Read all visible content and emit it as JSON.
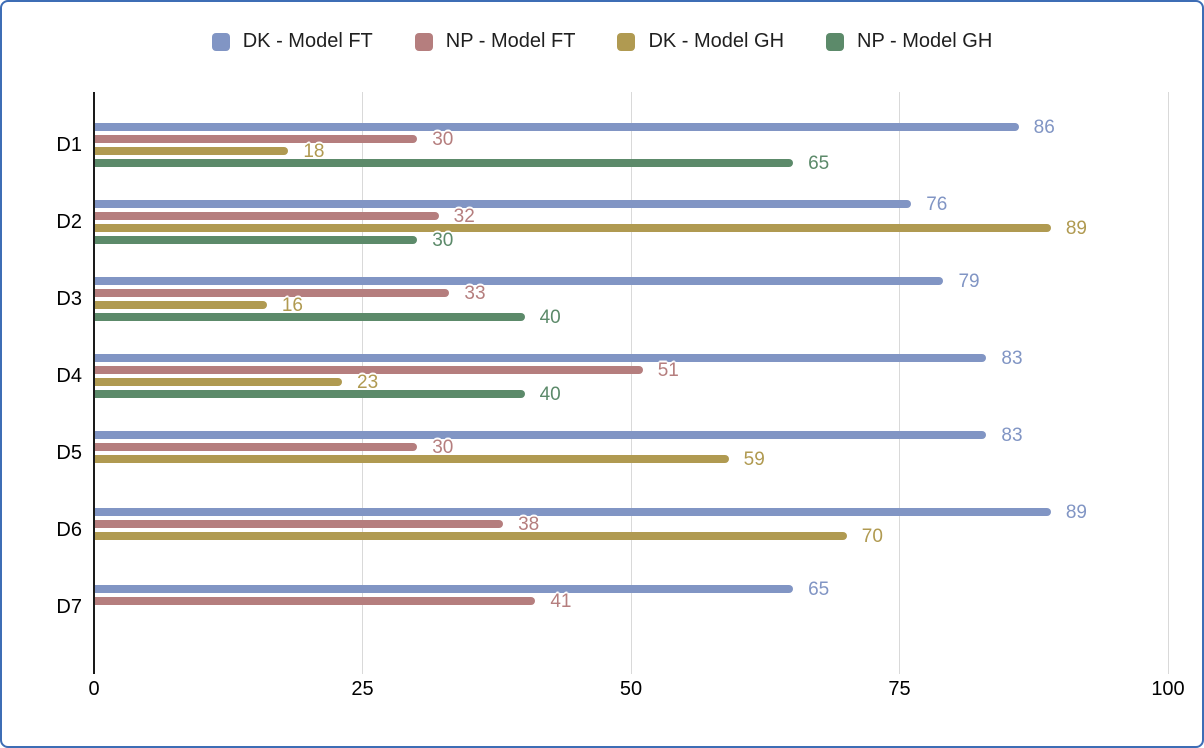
{
  "frame": {
    "background": "#ffffff",
    "border_color": "#3e6db5"
  },
  "chart_data": {
    "type": "bar",
    "orientation": "horizontal",
    "title": "",
    "categories": [
      "D1",
      "D2",
      "D3",
      "D4",
      "D5",
      "D6",
      "D7"
    ],
    "series": [
      {
        "name": "DK - Model FT",
        "color": "#8195c4",
        "values": [
          86,
          76,
          79,
          83,
          83,
          89,
          65
        ]
      },
      {
        "name": "NP - Model FT",
        "color": "#b57e7e",
        "values": [
          30,
          32,
          33,
          51,
          30,
          38,
          41
        ]
      },
      {
        "name": "DK - Model GH",
        "color": "#b09a51",
        "values": [
          18,
          89,
          16,
          23,
          59,
          70,
          null
        ]
      },
      {
        "name": "NP - Model GH",
        "color": "#5c8a6a",
        "values": [
          65,
          30,
          40,
          40,
          null,
          null,
          null
        ]
      }
    ],
    "x_ticks": [
      0,
      25,
      50,
      75,
      100
    ],
    "xlim": [
      0,
      100
    ],
    "grid": true,
    "legend_position": "top",
    "value_labels": true,
    "axis_color": "#1a1a1a",
    "grid_color": "#d9d9d9",
    "tick_label_color": "#000000",
    "category_label_color": "#000000"
  }
}
